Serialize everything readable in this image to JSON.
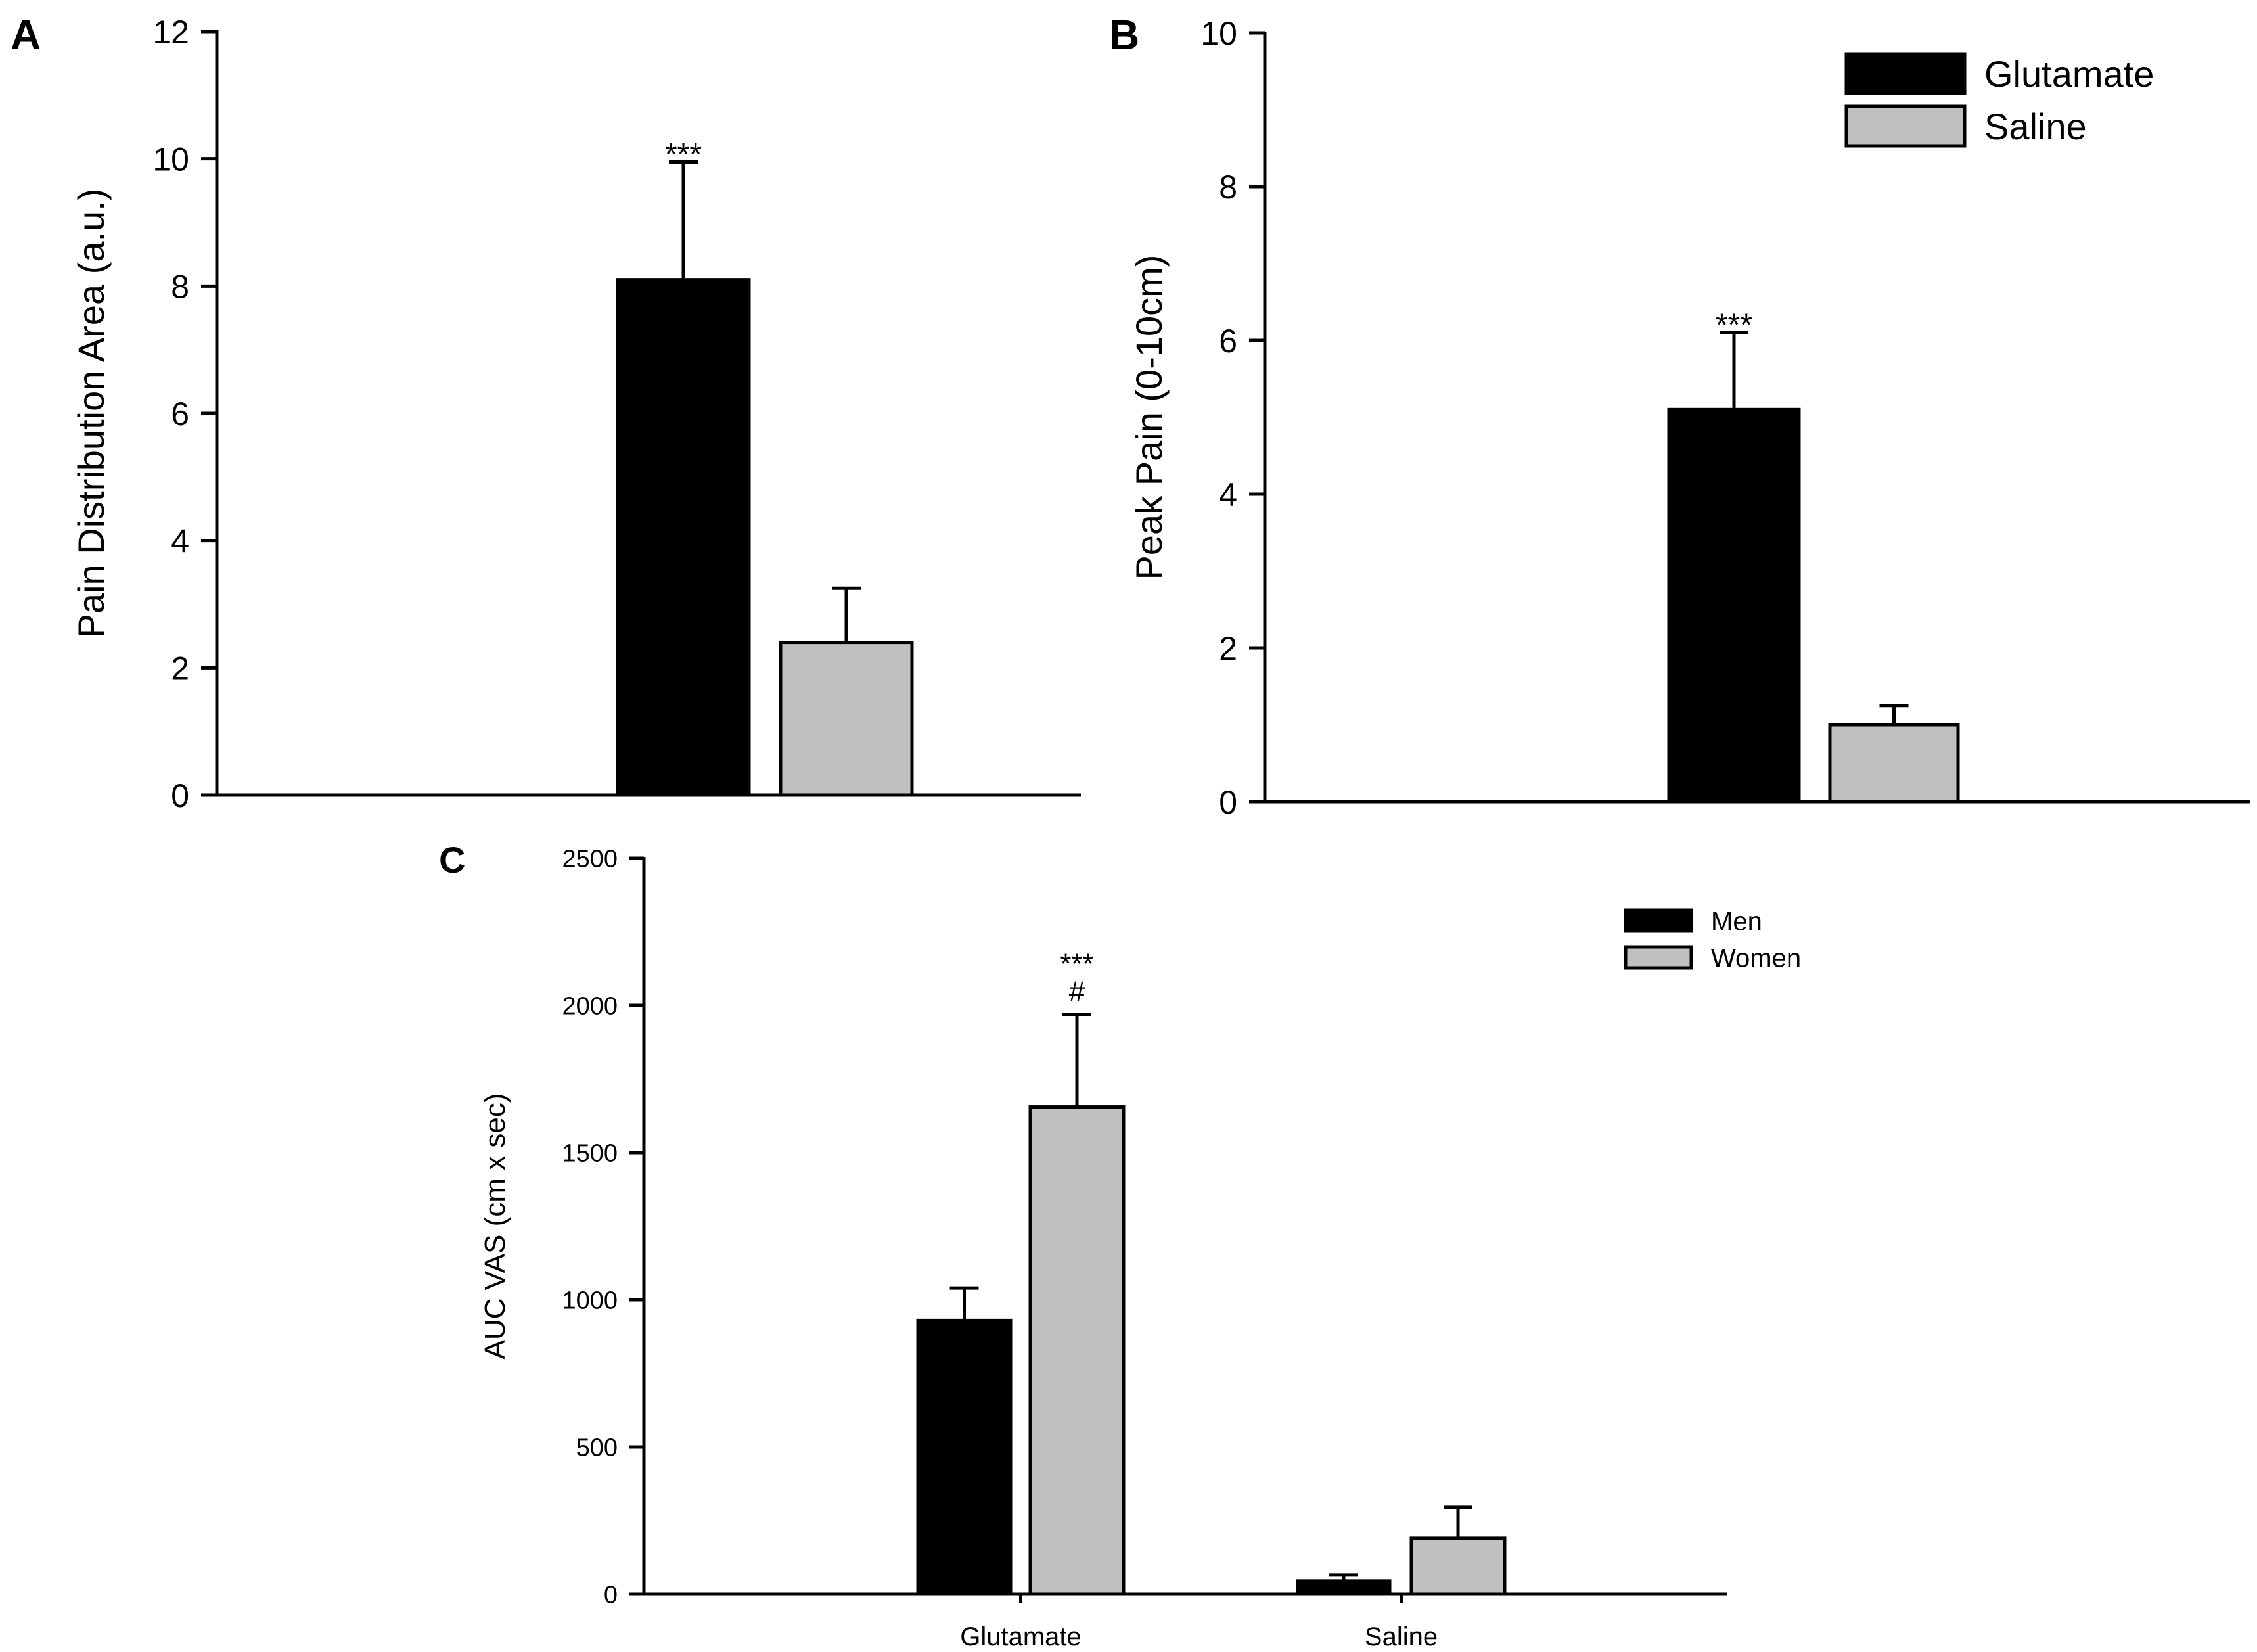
{
  "figure": {
    "colors": {
      "glutamate": "#000000",
      "saline": "#c0c0c0",
      "men": "#000000",
      "women": "#c0c0c0",
      "axis": "#000000"
    }
  },
  "chart_data": [
    {
      "panel_label": "A",
      "type": "bar",
      "title": "",
      "xlabel": "",
      "ylabel": "Pain Distribution Area (a.u.)",
      "ylim": [
        0,
        12
      ],
      "yticks": [
        0,
        2,
        4,
        6,
        8,
        10,
        12
      ],
      "categories": [
        ""
      ],
      "series": [
        {
          "name": "Glutamate",
          "values": [
            8.1
          ],
          "error": [
            1.85
          ],
          "color": "#000000",
          "annotation": "***"
        },
        {
          "name": "Saline",
          "values": [
            2.4
          ],
          "error": [
            0.85
          ],
          "color": "#c0c0c0",
          "annotation": ""
        }
      ],
      "legend": "none"
    },
    {
      "panel_label": "B",
      "type": "bar",
      "title": "",
      "xlabel": "",
      "ylabel": "Peak Pain (0-10cm)",
      "ylim": [
        0,
        10
      ],
      "yticks": [
        0,
        2,
        4,
        6,
        8,
        10
      ],
      "categories": [
        ""
      ],
      "series": [
        {
          "name": "Glutamate",
          "values": [
            5.1
          ],
          "error": [
            1.0
          ],
          "color": "#000000",
          "annotation": "***"
        },
        {
          "name": "Saline",
          "values": [
            1.0
          ],
          "error": [
            0.25
          ],
          "color": "#c0c0c0",
          "annotation": ""
        }
      ],
      "legend": "top-right",
      "legend_entries": [
        "Glutamate",
        "Saline"
      ]
    },
    {
      "panel_label": "C",
      "type": "bar",
      "title": "",
      "xlabel": "",
      "ylabel": "AUC VAS (cm x sec)",
      "ylim": [
        0,
        2500
      ],
      "yticks": [
        0,
        500,
        1000,
        1500,
        2000,
        2500
      ],
      "categories": [
        "Glutamate",
        "Saline"
      ],
      "series": [
        {
          "name": "Men",
          "values": [
            930,
            45
          ],
          "error": [
            110,
            20
          ],
          "color": "#000000",
          "annotations": [
            "",
            ""
          ]
        },
        {
          "name": "Women",
          "values": [
            1655,
            190
          ],
          "error": [
            315,
            105
          ],
          "color": "#c0c0c0",
          "annotations": [
            "***|#",
            ""
          ]
        }
      ],
      "legend": "top-right",
      "legend_entries": [
        "Men",
        "Women"
      ]
    }
  ]
}
